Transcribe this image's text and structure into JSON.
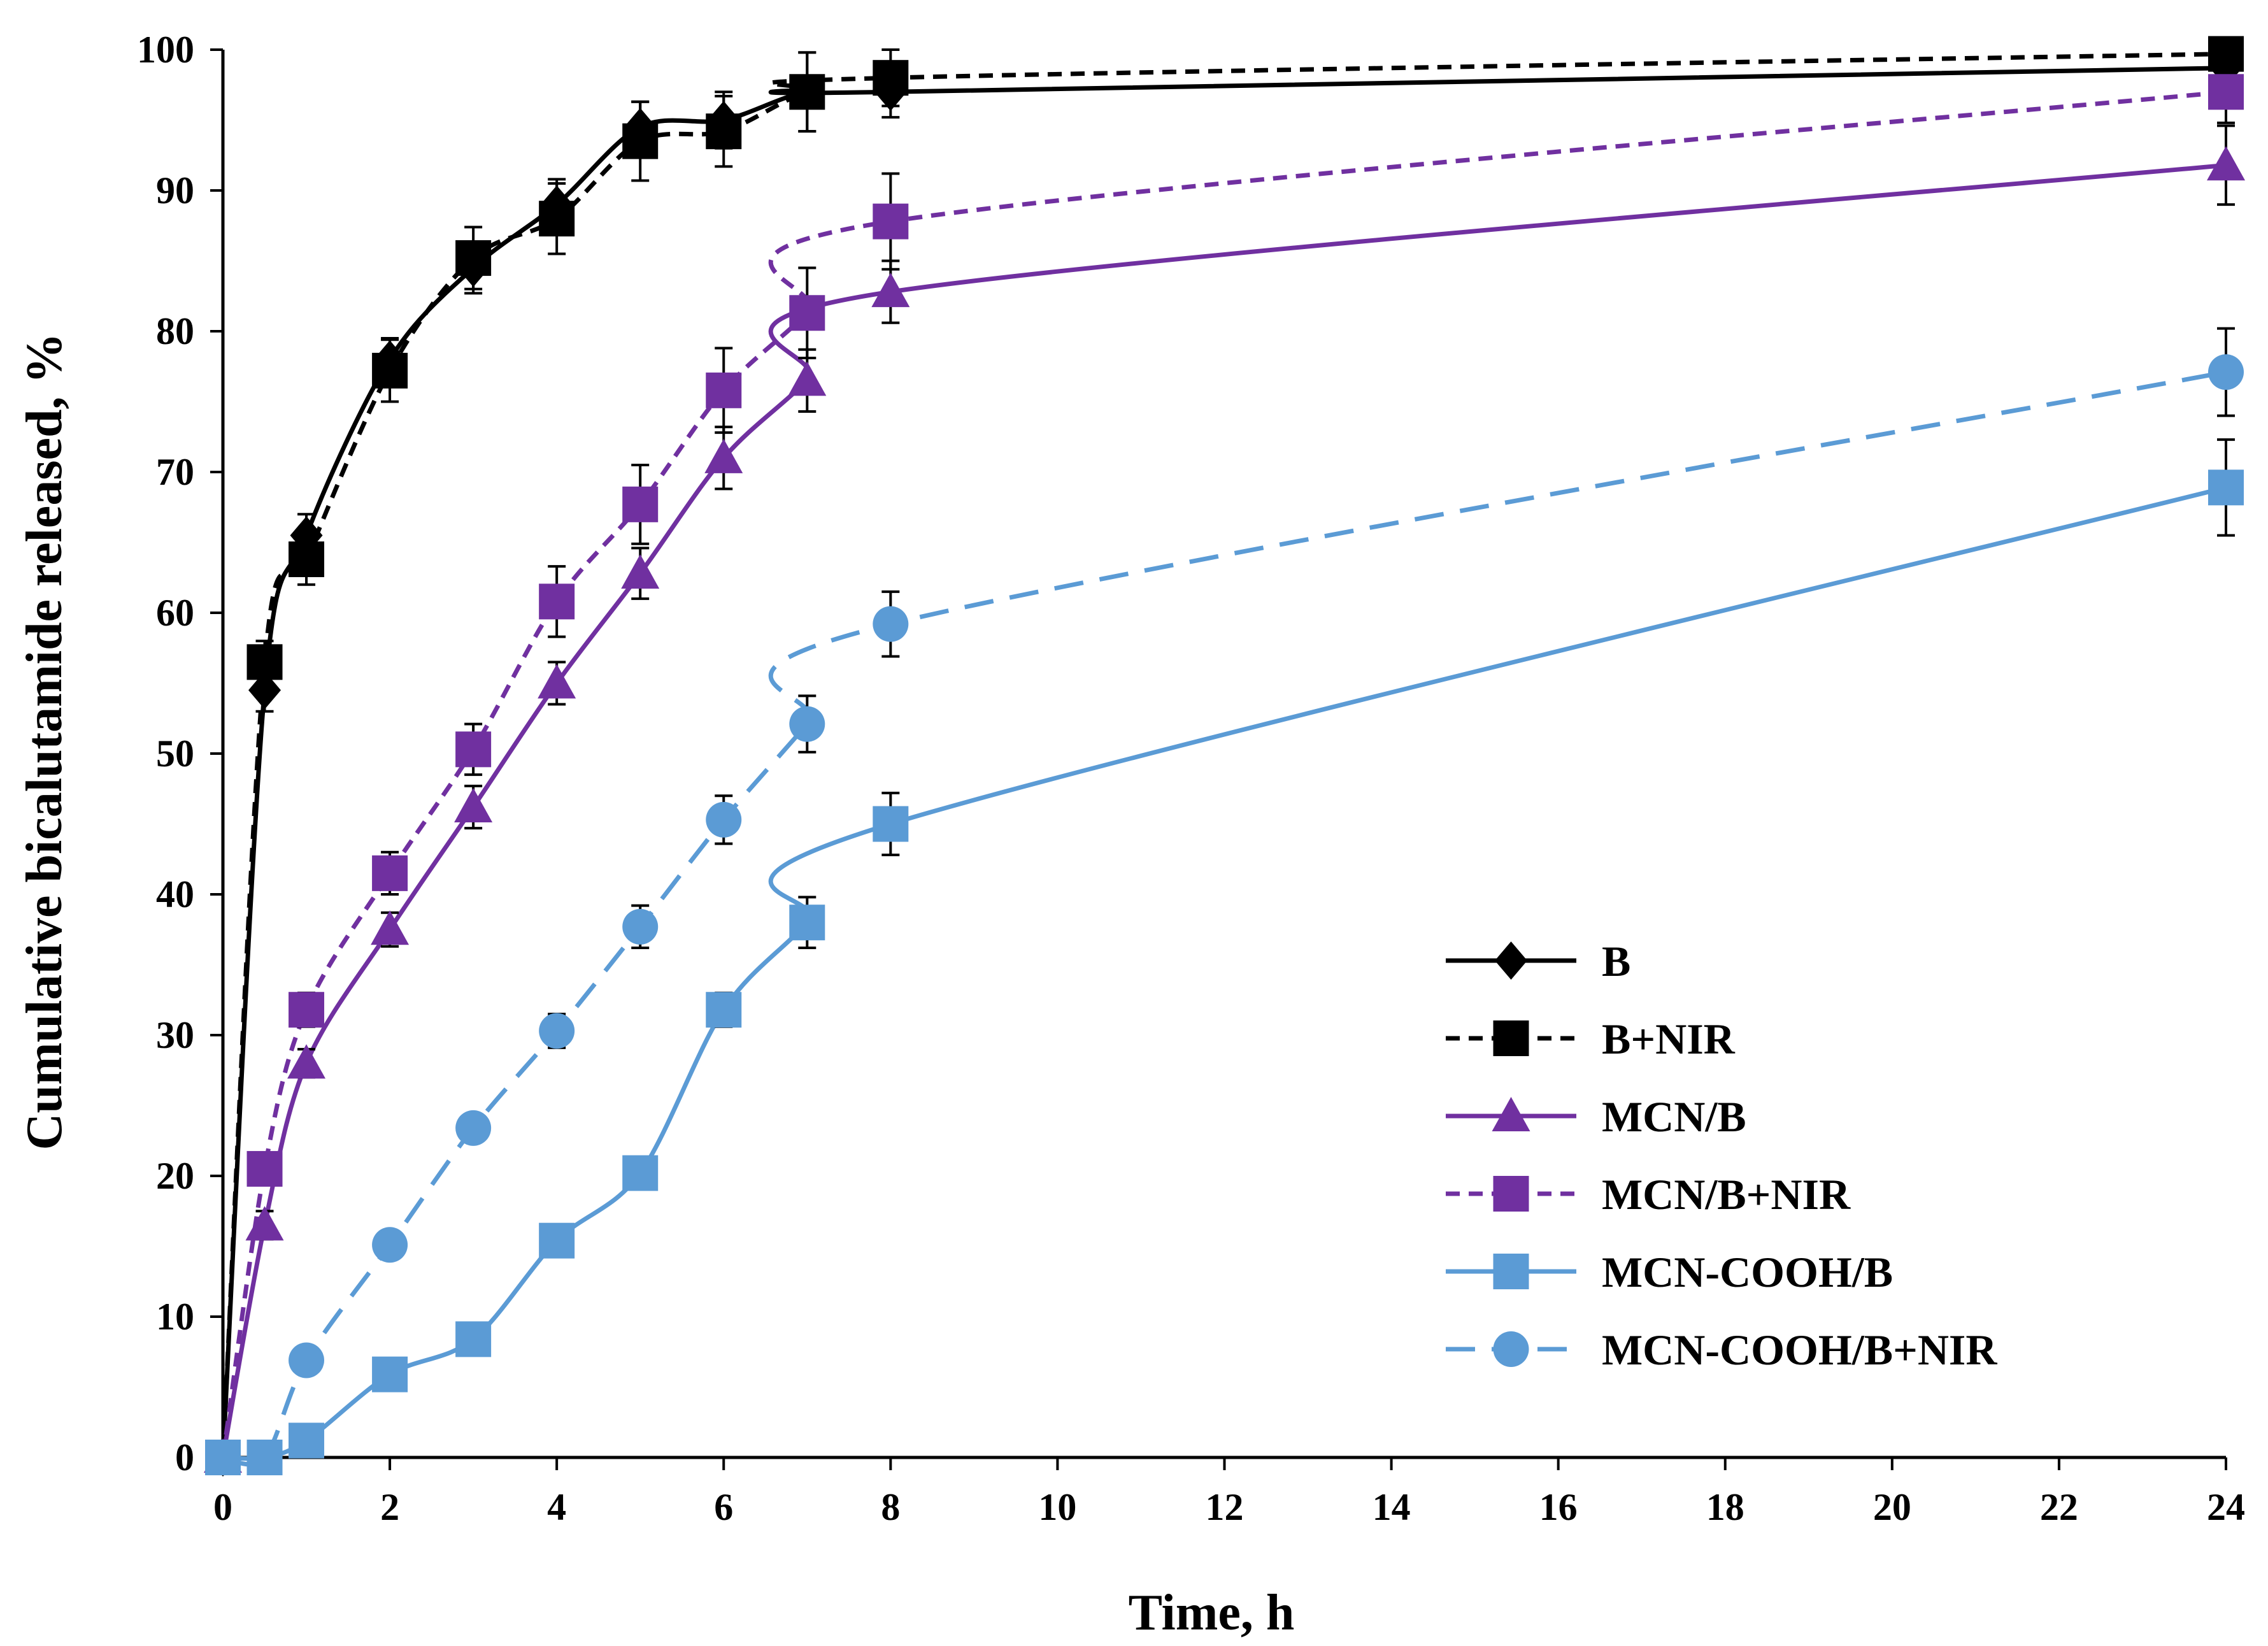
{
  "chart_data": {
    "type": "line",
    "title": "",
    "xlabel": "Time, h",
    "ylabel": "Cumulative bicalutamide released, %",
    "xlim": [
      0,
      24
    ],
    "ylim": [
      0,
      100
    ],
    "xticks": [
      0,
      2,
      4,
      6,
      8,
      10,
      12,
      14,
      16,
      18,
      20,
      22,
      24
    ],
    "yticks": [
      0,
      10,
      20,
      30,
      40,
      50,
      60,
      70,
      80,
      90,
      100
    ],
    "grid": false,
    "legend_position": "bottom-right",
    "x": [
      0,
      0.5,
      1,
      2,
      3,
      4,
      5,
      6,
      7,
      8,
      24
    ],
    "series": [
      {
        "name": "B",
        "color": "#000000",
        "dash": "solid",
        "marker": "diamond",
        "values": [
          0,
          54.5,
          65.5,
          78,
          84.5,
          89,
          94.5,
          95,
          97,
          97,
          98.7
        ],
        "errors": [
          0,
          1.5,
          1.5,
          1.5,
          1.8,
          1.8,
          1.8,
          2,
          2.8,
          1.8,
          1.5
        ]
      },
      {
        "name": "B+NIR",
        "color": "#000000",
        "dash": "dashed",
        "marker": "square",
        "values": [
          0,
          56.5,
          63.8,
          77.2,
          85.2,
          88,
          93.5,
          94.2,
          97,
          98,
          99.7
        ],
        "errors": [
          0,
          1.5,
          1.8,
          2.2,
          2.2,
          2.5,
          2.8,
          2.5,
          2.8,
          2,
          1
        ]
      },
      {
        "name": "MCN/B",
        "color": "#7030A0",
        "dash": "solid",
        "marker": "triangle",
        "values": [
          0,
          16.5,
          28,
          37.5,
          46.2,
          55,
          62.8,
          71,
          76.5,
          82.8,
          91.8
        ],
        "errors": [
          0,
          1,
          1,
          1.2,
          1.5,
          1.5,
          1.8,
          2.2,
          2.2,
          2.2,
          2.8
        ]
      },
      {
        "name": "MCN/B+NIR",
        "color": "#7030A0",
        "dash": "dashed",
        "marker": "square",
        "values": [
          0,
          20.5,
          31.8,
          41.5,
          50.3,
          60.8,
          67.7,
          75.8,
          81.3,
          87.8,
          97
        ],
        "errors": [
          0,
          1,
          1.2,
          1.5,
          1.8,
          2.5,
          2.8,
          3,
          3.2,
          3.4,
          2.2
        ]
      },
      {
        "name": "MCN-COOH/B",
        "color": "#5B9BD5",
        "dash": "solid",
        "marker": "square",
        "values": [
          0,
          0,
          1.2,
          5.9,
          8.4,
          15.4,
          20.2,
          31.8,
          38,
          45,
          68.9
        ],
        "errors": [
          0,
          0,
          0.5,
          0.5,
          0.5,
          0.8,
          1,
          1.2,
          1.8,
          2.2,
          3.4
        ]
      },
      {
        "name": "MCN-COOH/B+NIR",
        "color": "#5B9BD5",
        "dash": "long-dash",
        "marker": "circle",
        "values": [
          0,
          0,
          6.9,
          15.1,
          23.4,
          30.3,
          37.7,
          45.3,
          52.1,
          59.2,
          77.1
        ],
        "errors": [
          0,
          0,
          0.6,
          0.8,
          0.9,
          1.2,
          1.5,
          1.7,
          2,
          2.3,
          3.1
        ]
      }
    ]
  }
}
